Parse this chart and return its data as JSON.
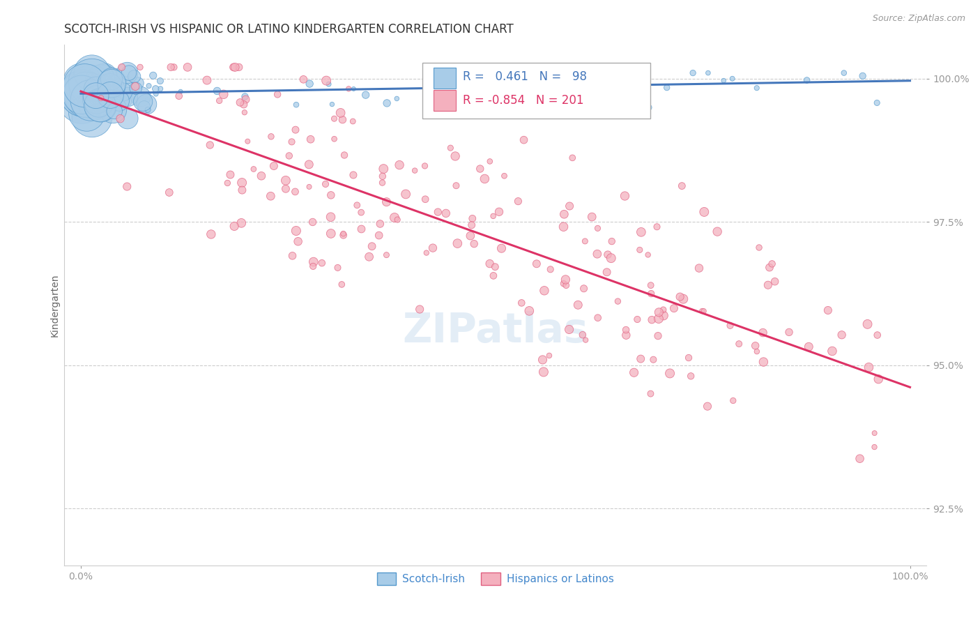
{
  "title": "SCOTCH-IRISH VS HISPANIC OR LATINO KINDERGARTEN CORRELATION CHART",
  "source": "Source: ZipAtlas.com",
  "ylabel": "Kindergarten",
  "r_blue": 0.461,
  "n_blue": 98,
  "r_pink": -0.854,
  "n_pink": 201,
  "blue_color": "#a8cce8",
  "pink_color": "#f4b0be",
  "blue_edge_color": "#5599cc",
  "pink_edge_color": "#e06080",
  "blue_line_color": "#4477bb",
  "pink_line_color": "#dd3366",
  "legend_label_blue": "Scotch-Irish",
  "legend_label_pink": "Hispanics or Latinos",
  "watermark_text": "ZIPatlas",
  "xlim": [
    -0.02,
    1.02
  ],
  "ylim": [
    0.915,
    1.006
  ],
  "ytick_labels": [
    "92.5%",
    "95.0%",
    "97.5%",
    "100.0%"
  ],
  "ytick_values": [
    0.925,
    0.95,
    0.975,
    1.0
  ],
  "xtick_labels": [
    "0.0%",
    "100.0%"
  ],
  "xtick_values": [
    0.0,
    1.0
  ],
  "title_fontsize": 12,
  "source_fontsize": 9,
  "tick_fontsize": 10,
  "ylabel_fontsize": 10,
  "legend_fontsize": 11,
  "corr_fontsize": 12,
  "tick_color": "#4488cc",
  "ylabel_color": "#666666",
  "title_color": "#333333"
}
